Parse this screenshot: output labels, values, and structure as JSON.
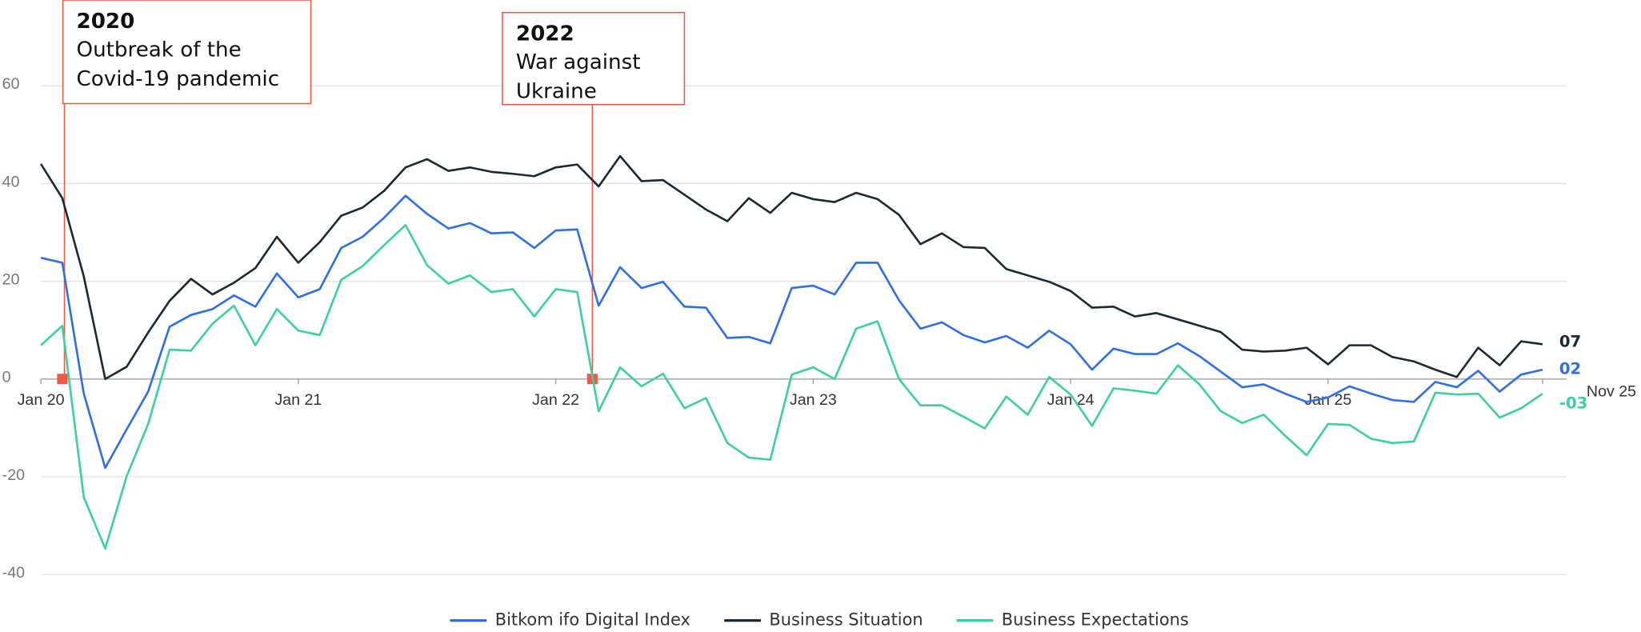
{
  "chart_data": {
    "type": "line",
    "categories": [
      "Jan 20",
      null,
      null,
      null,
      null,
      null,
      null,
      null,
      null,
      null,
      null,
      null,
      "Jan 21",
      null,
      null,
      null,
      null,
      null,
      null,
      null,
      null,
      null,
      null,
      null,
      "Jan 22",
      null,
      null,
      null,
      null,
      null,
      null,
      null,
      null,
      null,
      null,
      null,
      "Jan 23",
      null,
      null,
      null,
      null,
      null,
      null,
      null,
      null,
      null,
      null,
      null,
      "Jan 24",
      null,
      null,
      null,
      null,
      null,
      null,
      null,
      null,
      null,
      null,
      null,
      "Jan 25",
      null,
      null,
      null,
      null,
      null,
      null,
      null,
      null,
      null,
      "Nov 25"
    ],
    "series": [
      {
        "name": "Bitkom ifo Digital Index",
        "color": "#2f6fe4",
        "values": [
          24.8,
          23.8,
          -3,
          -18.2,
          -10.3,
          -2.6,
          10.7,
          13.1,
          14.3,
          17.1,
          14.8,
          21.6,
          16.7,
          18.4,
          26.8,
          29.1,
          33,
          37.5,
          33.8,
          30.8,
          31.9,
          29.8,
          30,
          26.8,
          30.4,
          30.6,
          15,
          22.9,
          18.6,
          19.9,
          14.8,
          14.6,
          8.4,
          8.6,
          7.3,
          18.6,
          19.1,
          17.3,
          23.8,
          23.8,
          16.1,
          10.3,
          11.6,
          9,
          7.5,
          8.8,
          6.4,
          9.9,
          7.1,
          1.9,
          6.2,
          5.1,
          5.1,
          7.3,
          4.7,
          1.5,
          -1.7,
          -1.1,
          -3,
          -4.7,
          -3.8,
          -1.5,
          -3,
          -4.3,
          -4.7,
          -0.6,
          -1.7,
          1.7,
          -2.6,
          0.9,
          1.9
        ],
        "value_labels": [
          null,
          null,
          null,
          null,
          null,
          null,
          null,
          null,
          null,
          null,
          null,
          null,
          null,
          null,
          null,
          null,
          null,
          null,
          null,
          null,
          null,
          null,
          null,
          null,
          null,
          null,
          null,
          null,
          null,
          null,
          null,
          null,
          null,
          null,
          null,
          null,
          null,
          null,
          null,
          null,
          null,
          null,
          null,
          null,
          null,
          null,
          null,
          null,
          null,
          null,
          null,
          null,
          null,
          null,
          null,
          null,
          null,
          null,
          null,
          null,
          null,
          null,
          null,
          null,
          null,
          null,
          null,
          null,
          null,
          null,
          "02"
        ]
      },
      {
        "name": "Business Situation",
        "color": "#1b2a30",
        "values": [
          44,
          37,
          21,
          0,
          2.5,
          9.5,
          16,
          20.5,
          17.3,
          19.7,
          22.7,
          29.1,
          23.8,
          28,
          33.4,
          35.1,
          38.5,
          43.3,
          45,
          42.6,
          43.3,
          42.4,
          42,
          41.5,
          43.3,
          43.9,
          39.4,
          45.6,
          40.5,
          40.7,
          37.7,
          34.7,
          32.3,
          37,
          34,
          38.1,
          36.8,
          36.2,
          38.1,
          36.8,
          33.6,
          27.6,
          29.8,
          27,
          26.8,
          22.5,
          21.2,
          19.9,
          18,
          14.6,
          14.8,
          12.8,
          13.5,
          12.2,
          10.9,
          9.6,
          6,
          5.6,
          5.8,
          6.4,
          3,
          6.9,
          6.9,
          4.5,
          3.6,
          1.9,
          0.4,
          6.4,
          2.8,
          7.7,
          7.1
        ],
        "value_labels": [
          null,
          null,
          null,
          null,
          null,
          null,
          null,
          null,
          null,
          null,
          null,
          null,
          null,
          null,
          null,
          null,
          null,
          null,
          null,
          null,
          null,
          null,
          null,
          null,
          null,
          null,
          null,
          null,
          null,
          null,
          null,
          null,
          null,
          null,
          null,
          null,
          null,
          null,
          null,
          null,
          null,
          null,
          null,
          null,
          null,
          null,
          null,
          null,
          null,
          null,
          null,
          null,
          null,
          null,
          null,
          null,
          null,
          null,
          null,
          null,
          null,
          null,
          null,
          null,
          null,
          null,
          null,
          null,
          null,
          null,
          "07"
        ]
      },
      {
        "name": "Business Expectations",
        "color": "#3ecf9e",
        "values": [
          6.9,
          10.9,
          -24.2,
          -34.7,
          -19.9,
          -9.2,
          6,
          5.8,
          11.3,
          15,
          6.9,
          14.3,
          9.9,
          9,
          20.3,
          23.1,
          27.4,
          31.5,
          23.3,
          19.5,
          21.2,
          17.8,
          18.4,
          12.8,
          18.4,
          17.8,
          -6.6,
          2.4,
          -1.5,
          1.1,
          -6,
          -3.9,
          -13.1,
          -16.1,
          -16.5,
          0.9,
          2.4,
          0,
          10.3,
          11.8,
          0,
          -5.4,
          -5.4,
          -7.7,
          -10.1,
          -3.6,
          -7.3,
          0.4,
          -3.2,
          -9.6,
          -1.9,
          -2.4,
          -3,
          2.8,
          -1.1,
          -6.6,
          -9,
          -7.3,
          -11.6,
          -15.6,
          -9.2,
          -9.4,
          -12.2,
          -13.1,
          -12.8,
          -2.8,
          -3.2,
          -3,
          -7.9,
          -6,
          -3
        ],
        "value_labels": [
          null,
          null,
          null,
          null,
          null,
          null,
          null,
          null,
          null,
          null,
          null,
          null,
          null,
          null,
          null,
          null,
          null,
          null,
          null,
          null,
          null,
          null,
          null,
          null,
          null,
          null,
          null,
          null,
          null,
          null,
          null,
          null,
          null,
          null,
          null,
          null,
          null,
          null,
          null,
          null,
          null,
          null,
          null,
          null,
          null,
          null,
          null,
          null,
          null,
          null,
          null,
          null,
          null,
          null,
          null,
          null,
          null,
          null,
          null,
          null,
          null,
          null,
          null,
          null,
          null,
          null,
          null,
          null,
          null,
          null,
          "-03"
        ]
      }
    ],
    "ylim": [
      -40,
      60
    ],
    "yticks": [
      -40,
      -20,
      0,
      20,
      40,
      60
    ],
    "grid": true,
    "legend": "bottom",
    "annotations": [
      {
        "title": "2020",
        "lines": [
          "Outbreak of the",
          "Covid-19 pandemic"
        ],
        "color": "#ee5a45"
      },
      {
        "title": "2022",
        "lines": [
          "War against",
          "Ukraine"
        ],
        "color": "#ee5a45"
      }
    ]
  }
}
